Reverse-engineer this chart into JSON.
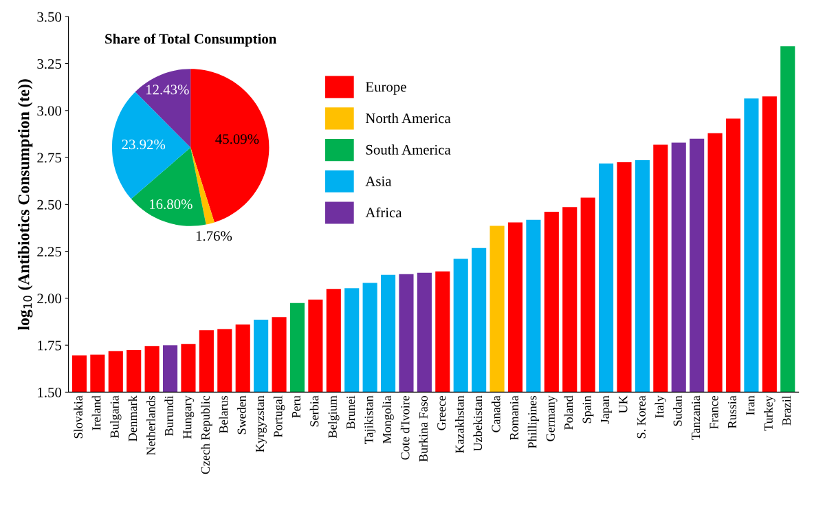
{
  "chart_data": [
    {
      "type": "bar",
      "ylabel": "log$_{10}$ (Antibiotics Consumption (te))",
      "categories": [
        "Slovakia",
        "Ireland",
        "Bulgaria",
        "Denmark",
        "Netherlands",
        "Burundi",
        "Hungary",
        "Czech Republic",
        "Belarus",
        "Sweden",
        "Kyrgyzstan",
        "Portugal",
        "Peru",
        "Serbia",
        "Belgium",
        "Brunei",
        "Tajikistan",
        "Mongolia",
        "Cote d'Ivoire",
        "Burkina Faso",
        "Greece",
        "Kazakhstan",
        "Uzbekistan",
        "Canada",
        "Romania",
        "Phillipines",
        "Germany",
        "Poland",
        "Spain",
        "Japan",
        "UK",
        "S. Korea",
        "Italy",
        "Sudan",
        "Tanzania",
        "France",
        "Russia",
        "Iran",
        "Turkey",
        "Brazil"
      ],
      "values": [
        1.696,
        1.7,
        1.718,
        1.725,
        1.746,
        1.75,
        1.757,
        1.83,
        1.836,
        1.86,
        1.886,
        1.9,
        1.975,
        1.993,
        2.05,
        2.054,
        2.082,
        2.125,
        2.129,
        2.136,
        2.143,
        2.21,
        2.268,
        2.386,
        2.404,
        2.418,
        2.461,
        2.486,
        2.536,
        2.718,
        2.725,
        2.736,
        2.818,
        2.829,
        2.85,
        2.879,
        2.957,
        3.064,
        3.075,
        3.343
      ],
      "colors": [
        "#ff0000",
        "#ff0000",
        "#ff0000",
        "#ff0000",
        "#ff0000",
        "#7030a0",
        "#ff0000",
        "#ff0000",
        "#ff0000",
        "#ff0000",
        "#00b0f0",
        "#ff0000",
        "#00b050",
        "#ff0000",
        "#ff0000",
        "#00b0f0",
        "#00b0f0",
        "#00b0f0",
        "#7030a0",
        "#7030a0",
        "#ff0000",
        "#00b0f0",
        "#00b0f0",
        "#ffc000",
        "#ff0000",
        "#00b0f0",
        "#ff0000",
        "#ff0000",
        "#ff0000",
        "#00b0f0",
        "#ff0000",
        "#00b0f0",
        "#ff0000",
        "#7030a0",
        "#7030a0",
        "#ff0000",
        "#ff0000",
        "#00b0f0",
        "#ff0000",
        "#00b050"
      ],
      "ylim": [
        1.5,
        3.5
      ],
      "yticks": [
        {
          "value": 1.5,
          "label": "1.50"
        },
        {
          "value": 1.75,
          "label": "1.75"
        },
        {
          "value": 2.0,
          "label": "2.00"
        },
        {
          "value": 2.25,
          "label": "2.25"
        },
        {
          "value": 2.5,
          "label": "2.50"
        },
        {
          "value": 2.75,
          "label": "2.75"
        },
        {
          "value": 3.0,
          "label": "3.00"
        },
        {
          "value": 3.25,
          "label": "3.25"
        },
        {
          "value": 3.5,
          "label": "3.50"
        }
      ],
      "grid": false
    },
    {
      "type": "pie",
      "title": "Share of Total Consumption",
      "categories": [
        "Europe",
        "North America",
        "South America",
        "Asia",
        "Africa"
      ],
      "values": [
        45.09,
        1.76,
        16.8,
        23.92,
        12.43
      ],
      "colors": [
        "#ff0000",
        "#ffc000",
        "#00b050",
        "#00b0f0",
        "#7030a0"
      ],
      "value_labels": [
        "45.09%",
        "1.76%",
        "16.80%",
        "23.92%",
        "12.43%"
      ],
      "legend": "right"
    }
  ]
}
